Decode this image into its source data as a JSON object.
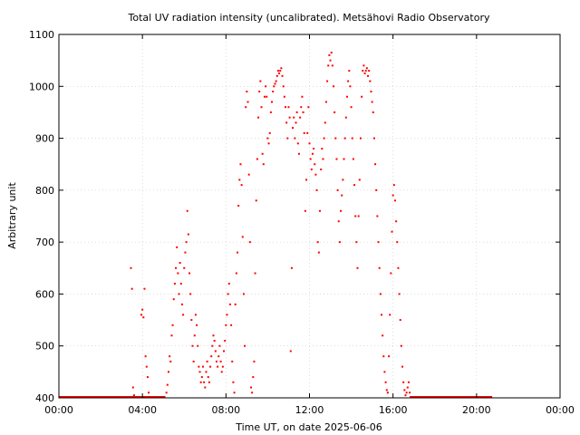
{
  "chart_data": {
    "type": "scatter",
    "title": "Total UV radiation intensity (uncalibrated). Metsähovi Radio Observatory",
    "xlabel": "Time UT, on date 2025-06-06",
    "ylabel": "Arbitrary unit",
    "xlim": [
      0,
      24
    ],
    "ylim": [
      400,
      1100
    ],
    "xticks": [
      {
        "value": 0,
        "label": "00:00"
      },
      {
        "value": 4,
        "label": "04:00"
      },
      {
        "value": 8,
        "label": "08:00"
      },
      {
        "value": 12,
        "label": "12:00"
      },
      {
        "value": 16,
        "label": "16:00"
      },
      {
        "value": 20,
        "label": "20:00"
      },
      {
        "value": 24,
        "label": "00:00"
      }
    ],
    "yticks": [
      400,
      500,
      600,
      700,
      800,
      900,
      1000,
      1100
    ],
    "grid": true,
    "series_color": "#ff0000",
    "baseline": {
      "value": 400,
      "segments": [
        [
          0,
          5.1
        ],
        [
          16.8,
          20.75
        ]
      ]
    },
    "points": [
      [
        3.45,
        650
      ],
      [
        3.5,
        610
      ],
      [
        3.55,
        420
      ],
      [
        3.6,
        405
      ],
      [
        3.95,
        560
      ],
      [
        4.0,
        570
      ],
      [
        4.05,
        555
      ],
      [
        4.1,
        610
      ],
      [
        4.15,
        480
      ],
      [
        4.2,
        460
      ],
      [
        4.25,
        440
      ],
      [
        4.3,
        410
      ],
      [
        5.15,
        410
      ],
      [
        5.2,
        425
      ],
      [
        5.25,
        450
      ],
      [
        5.3,
        480
      ],
      [
        5.35,
        470
      ],
      [
        5.4,
        520
      ],
      [
        5.45,
        540
      ],
      [
        5.5,
        590
      ],
      [
        5.55,
        620
      ],
      [
        5.6,
        650
      ],
      [
        5.65,
        690
      ],
      [
        5.7,
        640
      ],
      [
        5.75,
        600
      ],
      [
        5.8,
        660
      ],
      [
        5.85,
        620
      ],
      [
        5.9,
        580
      ],
      [
        5.95,
        560
      ],
      [
        6.0,
        650
      ],
      [
        6.05,
        680
      ],
      [
        6.1,
        700
      ],
      [
        6.15,
        760
      ],
      [
        6.2,
        715
      ],
      [
        6.25,
        640
      ],
      [
        6.3,
        600
      ],
      [
        6.35,
        550
      ],
      [
        6.4,
        500
      ],
      [
        6.45,
        470
      ],
      [
        6.5,
        520
      ],
      [
        6.55,
        560
      ],
      [
        6.6,
        540
      ],
      [
        6.65,
        500
      ],
      [
        6.7,
        460
      ],
      [
        6.75,
        450
      ],
      [
        6.8,
        430
      ],
      [
        6.85,
        440
      ],
      [
        6.9,
        460
      ],
      [
        6.95,
        430
      ],
      [
        7.0,
        420
      ],
      [
        7.05,
        450
      ],
      [
        7.1,
        470
      ],
      [
        7.15,
        440
      ],
      [
        7.2,
        430
      ],
      [
        7.25,
        460
      ],
      [
        7.3,
        480
      ],
      [
        7.35,
        500
      ],
      [
        7.4,
        520
      ],
      [
        7.45,
        510
      ],
      [
        7.5,
        490
      ],
      [
        7.55,
        470
      ],
      [
        7.6,
        460
      ],
      [
        7.65,
        480
      ],
      [
        7.7,
        500
      ],
      [
        7.75,
        470
      ],
      [
        7.8,
        450
      ],
      [
        7.85,
        460
      ],
      [
        7.9,
        490
      ],
      [
        7.95,
        510
      ],
      [
        8.0,
        540
      ],
      [
        8.05,
        560
      ],
      [
        8.1,
        600
      ],
      [
        8.15,
        620
      ],
      [
        8.2,
        580
      ],
      [
        8.25,
        540
      ],
      [
        8.3,
        470
      ],
      [
        8.35,
        430
      ],
      [
        8.4,
        410
      ],
      [
        8.45,
        580
      ],
      [
        8.5,
        640
      ],
      [
        8.55,
        680
      ],
      [
        8.6,
        770
      ],
      [
        8.65,
        820
      ],
      [
        8.7,
        850
      ],
      [
        8.75,
        810
      ],
      [
        8.8,
        710
      ],
      [
        8.85,
        600
      ],
      [
        8.9,
        500
      ],
      [
        8.95,
        960
      ],
      [
        9.0,
        990
      ],
      [
        9.05,
        970
      ],
      [
        9.1,
        830
      ],
      [
        9.15,
        700
      ],
      [
        9.2,
        420
      ],
      [
        9.25,
        410
      ],
      [
        9.3,
        440
      ],
      [
        9.35,
        470
      ],
      [
        9.4,
        640
      ],
      [
        9.45,
        780
      ],
      [
        9.5,
        860
      ],
      [
        9.55,
        940
      ],
      [
        9.6,
        990
      ],
      [
        9.65,
        1010
      ],
      [
        9.7,
        960
      ],
      [
        9.75,
        870
      ],
      [
        9.8,
        850
      ],
      [
        9.85,
        980
      ],
      [
        9.9,
        1000
      ],
      [
        9.95,
        980
      ],
      [
        10.0,
        900
      ],
      [
        10.05,
        890
      ],
      [
        10.1,
        910
      ],
      [
        10.15,
        950
      ],
      [
        10.2,
        970
      ],
      [
        10.25,
        990
      ],
      [
        10.3,
        1000
      ],
      [
        10.35,
        1005
      ],
      [
        10.4,
        1010
      ],
      [
        10.45,
        1020
      ],
      [
        10.5,
        1030
      ],
      [
        10.55,
        1025
      ],
      [
        10.6,
        1030
      ],
      [
        10.65,
        1035
      ],
      [
        10.7,
        1020
      ],
      [
        10.75,
        1000
      ],
      [
        10.8,
        980
      ],
      [
        10.85,
        960
      ],
      [
        10.9,
        930
      ],
      [
        10.95,
        900
      ],
      [
        11.0,
        960
      ],
      [
        11.05,
        940
      ],
      [
        11.1,
        490
      ],
      [
        11.15,
        650
      ],
      [
        11.2,
        920
      ],
      [
        11.25,
        940
      ],
      [
        11.3,
        900
      ],
      [
        11.35,
        930
      ],
      [
        11.4,
        950
      ],
      [
        11.45,
        890
      ],
      [
        11.5,
        870
      ],
      [
        11.55,
        940
      ],
      [
        11.6,
        960
      ],
      [
        11.65,
        980
      ],
      [
        11.7,
        950
      ],
      [
        11.75,
        910
      ],
      [
        11.8,
        760
      ],
      [
        11.85,
        820
      ],
      [
        11.9,
        910
      ],
      [
        11.95,
        960
      ],
      [
        12.0,
        890
      ],
      [
        12.05,
        860
      ],
      [
        12.1,
        840
      ],
      [
        12.15,
        870
      ],
      [
        12.2,
        880
      ],
      [
        12.25,
        850
      ],
      [
        12.3,
        830
      ],
      [
        12.35,
        800
      ],
      [
        12.4,
        700
      ],
      [
        12.45,
        680
      ],
      [
        12.5,
        760
      ],
      [
        12.55,
        840
      ],
      [
        12.6,
        880
      ],
      [
        12.65,
        860
      ],
      [
        12.7,
        900
      ],
      [
        12.75,
        930
      ],
      [
        12.8,
        970
      ],
      [
        12.85,
        1010
      ],
      [
        12.9,
        1040
      ],
      [
        12.95,
        1060
      ],
      [
        13.0,
        1050
      ],
      [
        13.05,
        1065
      ],
      [
        13.1,
        1040
      ],
      [
        13.15,
        1000
      ],
      [
        13.2,
        950
      ],
      [
        13.25,
        900
      ],
      [
        13.3,
        860
      ],
      [
        13.35,
        800
      ],
      [
        13.4,
        740
      ],
      [
        13.45,
        700
      ],
      [
        13.5,
        760
      ],
      [
        13.55,
        790
      ],
      [
        13.6,
        820
      ],
      [
        13.65,
        860
      ],
      [
        13.7,
        900
      ],
      [
        13.75,
        940
      ],
      [
        13.8,
        980
      ],
      [
        13.85,
        1010
      ],
      [
        13.9,
        1030
      ],
      [
        13.95,
        1000
      ],
      [
        14.0,
        960
      ],
      [
        14.05,
        900
      ],
      [
        14.1,
        860
      ],
      [
        14.15,
        810
      ],
      [
        14.2,
        750
      ],
      [
        14.25,
        700
      ],
      [
        14.3,
        650
      ],
      [
        14.35,
        750
      ],
      [
        14.4,
        820
      ],
      [
        14.45,
        900
      ],
      [
        14.5,
        980
      ],
      [
        14.55,
        1030
      ],
      [
        14.6,
        1040
      ],
      [
        14.65,
        1025
      ],
      [
        14.7,
        1030
      ],
      [
        14.75,
        1035
      ],
      [
        14.8,
        1020
      ],
      [
        14.85,
        1030
      ],
      [
        14.9,
        1010
      ],
      [
        14.95,
        990
      ],
      [
        15.0,
        970
      ],
      [
        15.05,
        950
      ],
      [
        15.1,
        900
      ],
      [
        15.15,
        850
      ],
      [
        15.2,
        800
      ],
      [
        15.25,
        750
      ],
      [
        15.3,
        700
      ],
      [
        15.35,
        650
      ],
      [
        15.4,
        600
      ],
      [
        15.45,
        560
      ],
      [
        15.5,
        520
      ],
      [
        15.55,
        480
      ],
      [
        15.6,
        450
      ],
      [
        15.65,
        430
      ],
      [
        15.7,
        415
      ],
      [
        15.75,
        410
      ],
      [
        15.8,
        480
      ],
      [
        15.85,
        560
      ],
      [
        15.9,
        640
      ],
      [
        15.95,
        720
      ],
      [
        16.0,
        790
      ],
      [
        16.05,
        810
      ],
      [
        16.1,
        780
      ],
      [
        16.15,
        740
      ],
      [
        16.2,
        700
      ],
      [
        16.25,
        650
      ],
      [
        16.3,
        600
      ],
      [
        16.35,
        550
      ],
      [
        16.4,
        500
      ],
      [
        16.45,
        460
      ],
      [
        16.5,
        430
      ],
      [
        16.55,
        415
      ],
      [
        16.6,
        405
      ],
      [
        16.65,
        410
      ],
      [
        16.7,
        420
      ],
      [
        16.75,
        430
      ],
      [
        16.8,
        410
      ]
    ]
  }
}
